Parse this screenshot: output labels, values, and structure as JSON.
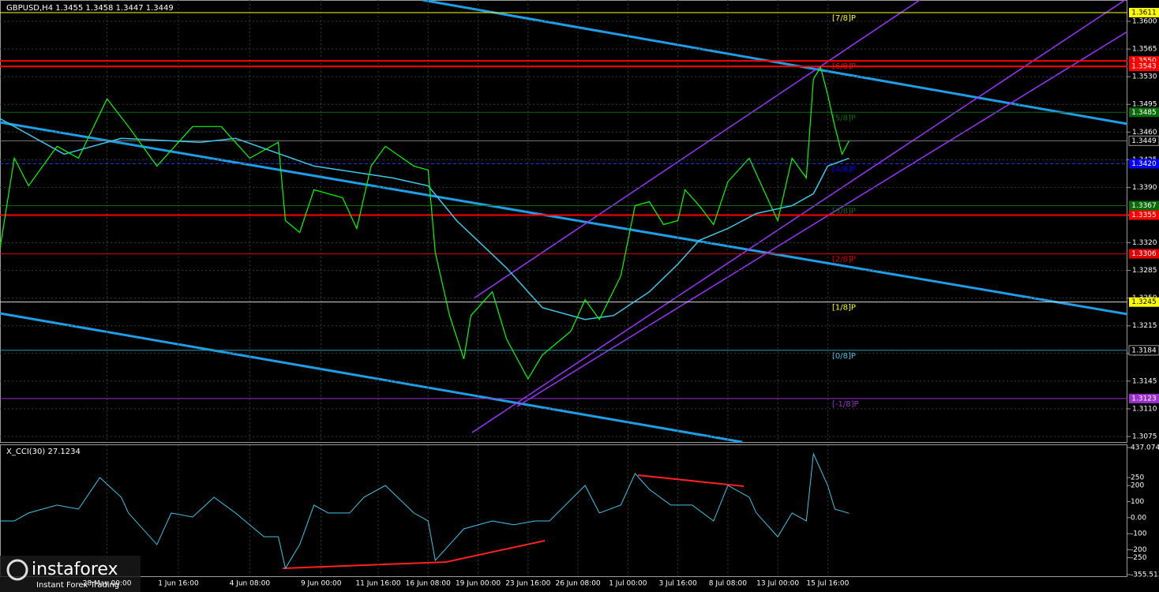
{
  "chart_data": {
    "type": "line",
    "title": "GBPUSD,H4  1.3455 1.3458 1.3447 1.3449",
    "xlim": [
      0,
      158
    ],
    "ylim": [
      1.3068,
      1.3627
    ],
    "grid": true,
    "yticks": [
      {
        "value": 1.36,
        "label": "1.3600"
      },
      {
        "value": 1.3565,
        "label": "1.3565"
      },
      {
        "value": 1.353,
        "label": "1.3530"
      },
      {
        "value": 1.3495,
        "label": "1.3495"
      },
      {
        "value": 1.346,
        "label": "1.3460"
      },
      {
        "value": 1.3425,
        "label": "1.3425"
      },
      {
        "value": 1.339,
        "label": "1.3390"
      },
      {
        "value": 1.3355,
        "label": "1.3355"
      },
      {
        "value": 1.332,
        "label": "1.3320"
      },
      {
        "value": 1.3285,
        "label": "1.3285"
      },
      {
        "value": 1.325,
        "label": "1.3250"
      },
      {
        "value": 1.3215,
        "label": "1.3215"
      },
      {
        "value": 1.318,
        "label": "1.3180"
      },
      {
        "value": 1.3145,
        "label": "1.3145"
      },
      {
        "value": 1.311,
        "label": "1.3110"
      },
      {
        "value": 1.3075,
        "label": "1.3075"
      }
    ],
    "xticks": [
      {
        "value": 15,
        "label": "28 May 00:00"
      },
      {
        "value": 25,
        "label": "1 Jun 16:00"
      },
      {
        "value": 35,
        "label": "4 Jun 08:00"
      },
      {
        "value": 45,
        "label": "9 Jun 00:00"
      },
      {
        "value": 53,
        "label": "11 Jun 16:00"
      },
      {
        "value": 60,
        "label": "16 Jun 08:00"
      },
      {
        "value": 67,
        "label": "19 Jun 00:00"
      },
      {
        "value": 74,
        "label": "23 Jun 16:00"
      },
      {
        "value": 81,
        "label": "26 Jun 08:00"
      },
      {
        "value": 88,
        "label": "1 Jul 00:00"
      },
      {
        "value": 95,
        "label": "3 Jul 16:00"
      },
      {
        "value": 102,
        "label": "8 Jul 08:00"
      },
      {
        "value": 109,
        "label": "13 Jul 00:00"
      },
      {
        "value": 116,
        "label": "15 Jul 16:00"
      }
    ],
    "price_line": {
      "color": "#00ff00",
      "x": [
        0,
        2,
        4,
        8,
        11,
        15,
        18,
        22,
        27,
        31,
        35,
        39,
        40,
        42,
        44,
        48,
        50,
        52,
        54,
        58,
        60,
        61,
        63,
        65,
        66,
        69,
        71,
        74,
        76,
        80,
        82,
        84,
        87,
        89,
        91,
        93,
        95,
        96,
        98,
        100,
        102,
        105,
        107,
        109,
        111,
        113,
        114,
        115,
        116,
        117,
        118,
        119
      ],
      "values": [
        1.3313,
        1.3427,
        1.3392,
        1.3442,
        1.3427,
        1.3502,
        1.3467,
        1.3417,
        1.3467,
        1.3467,
        1.3427,
        1.3447,
        1.3348,
        1.3333,
        1.3387,
        1.3377,
        1.3338,
        1.3417,
        1.3442,
        1.3417,
        1.3412,
        1.3308,
        1.3228,
        1.3173,
        1.3228,
        1.3258,
        1.3198,
        1.3148,
        1.3178,
        1.3208,
        1.3248,
        1.3223,
        1.3278,
        1.3367,
        1.3372,
        1.3343,
        1.3348,
        1.3387,
        1.3367,
        1.3343,
        1.3397,
        1.3427,
        1.3387,
        1.3348,
        1.3427,
        1.3402,
        1.3527,
        1.3542,
        1.3507,
        1.3467,
        1.3432,
        1.3449
      ]
    },
    "moving_average": {
      "color": "#3ec6e8",
      "x": [
        0,
        9,
        17,
        28,
        33,
        44,
        55,
        60,
        64,
        71,
        76,
        82,
        86,
        91,
        95,
        98,
        102,
        106,
        111,
        114,
        116,
        119
      ],
      "values": [
        1.3477,
        1.3432,
        1.3452,
        1.3447,
        1.3452,
        1.3417,
        1.3402,
        1.3392,
        1.3348,
        1.3288,
        1.3238,
        1.3223,
        1.3228,
        1.3258,
        1.3293,
        1.3323,
        1.3338,
        1.3357,
        1.3367,
        1.3382,
        1.3417,
        1.3427
      ]
    },
    "levels": [
      {
        "value": 1.3611,
        "label": "1.3611",
        "color": "#ffff00",
        "box": "#ffff00",
        "text_color": "#000000",
        "width": 1,
        "murray": "[7/8]P"
      },
      {
        "value": 1.355,
        "label": "1.3550",
        "color": "#ff0000",
        "box": "#ff0000",
        "text_color": "#ffffff",
        "width": 2,
        "murray": "[6/8]P"
      },
      {
        "value": 1.3543,
        "label": "1.3543",
        "color": "#ff0000",
        "box": "#ff0000",
        "text_color": "#ffffff",
        "width": 2
      },
      {
        "value": 1.3485,
        "label": "1.3485",
        "color": "#0b6b0b",
        "box": "#0b6b0b",
        "text_color": "#ffffff",
        "width": 1,
        "murray": "[5/8]P"
      },
      {
        "value": 1.3449,
        "label": "1.3449",
        "color": "#7a7a7a",
        "box": "#000000",
        "text_color": "#ffffff",
        "width": 1
      },
      {
        "value": 1.342,
        "label": "1.3420",
        "color": "#1a3cff",
        "box": "#0000ff",
        "text_color": "#ffffff",
        "width": 1,
        "dashed": true,
        "murray": "[4/8]P"
      },
      {
        "value": 1.3367,
        "label": "1.3367",
        "color": "#0b6b0b",
        "box": "#0b6b0b",
        "text_color": "#ffffff",
        "width": 1,
        "murray": "[3/8]P"
      },
      {
        "value": 1.3355,
        "label": "1.3355",
        "color": "#ff0000",
        "box": "#ff0000",
        "text_color": "#ffffff",
        "width": 2
      },
      {
        "value": 1.3306,
        "label": "1.3306",
        "color": "#e00000",
        "box": "#e00000",
        "text_color": "#ffffff",
        "width": 1,
        "murray": "[2/8]P"
      },
      {
        "value": 1.3245,
        "label": "1.3245",
        "color": "#d8d8d8",
        "box": "#ffff00",
        "text_color": "#000000",
        "width": 1,
        "murray": "[1/8]P",
        "murray_color": "#ffff00"
      },
      {
        "value": 1.3184,
        "label": "1.3184",
        "color": "#2a9aa8",
        "box": "#000000",
        "text_color": "#ffffff",
        "width": 1,
        "murray": "[0/8]P",
        "murray_color": "#3ec6e8"
      },
      {
        "value": 1.3123,
        "label": "1.3123",
        "color": "#9932cc",
        "box": "#9932cc",
        "text_color": "#ffffff",
        "width": 1,
        "murray": "[-1/8]P"
      }
    ],
    "cci": {
      "title": "X_CCI(30) 27.1234",
      "color": "#3ec6e8",
      "ylim": [
        -355.513,
        437.0745
      ],
      "yticks": [
        437.0745,
        250,
        200,
        100,
        {
          "value": 0,
          "label": "0.00"
        },
        -100,
        -200,
        -250,
        {
          "value": -355.513,
          "label": "-355.5130"
        }
      ],
      "x": [
        0,
        2,
        4,
        8,
        11,
        14,
        17,
        18,
        22,
        24,
        27,
        30,
        33,
        37,
        39,
        40,
        42,
        44,
        46,
        49,
        51,
        54,
        58,
        60,
        61,
        63,
        65,
        69,
        72,
        75,
        77,
        82,
        84,
        87,
        89,
        91,
        94,
        97,
        100,
        102,
        105,
        106,
        109,
        111,
        113,
        114,
        116,
        117,
        119
      ],
      "values": [
        -21,
        -21,
        29,
        78,
        53,
        250,
        127,
        29,
        -168,
        29,
        4,
        127,
        29,
        -119,
        -119,
        -316,
        -168,
        78,
        29,
        29,
        127,
        201,
        29,
        -21,
        -267,
        -168,
        -70,
        -21,
        -45,
        -21,
        -21,
        201,
        29,
        78,
        275,
        176,
        78,
        78,
        -21,
        201,
        127,
        29,
        -119,
        29,
        -21,
        398,
        201,
        53,
        27
      ]
    }
  },
  "watermark": {
    "brand": "instaforex",
    "tagline": "Instant Forex Trading"
  }
}
